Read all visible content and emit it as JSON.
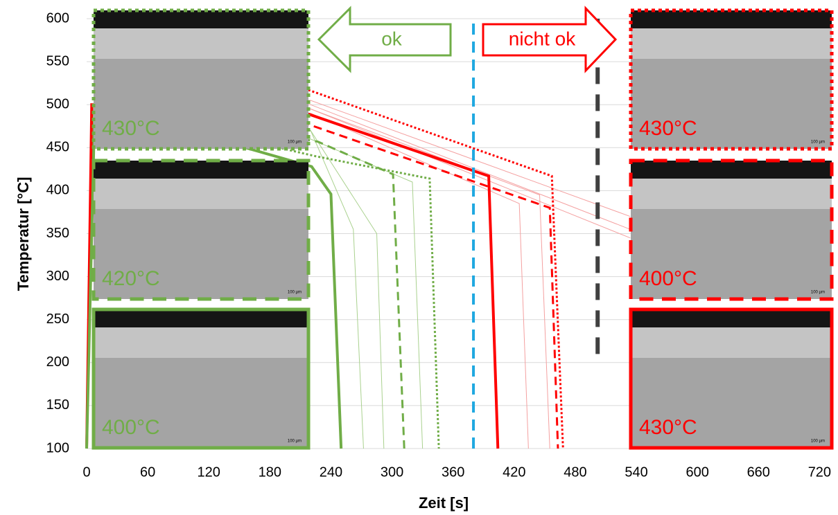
{
  "chart_data": {
    "type": "line",
    "xlabel": "Zeit [s]",
    "ylabel": "Temperatur  [°C]",
    "xlim": [
      0,
      732
    ],
    "ylim": [
      100,
      600
    ],
    "xticks": [
      0,
      60,
      120,
      180,
      240,
      300,
      360,
      420,
      480,
      540,
      600,
      660,
      720
    ],
    "yticks": [
      100,
      150,
      200,
      250,
      300,
      350,
      400,
      450,
      500,
      550,
      600
    ],
    "grid": true,
    "series": [
      {
        "color": "#a9d18e",
        "style": "solid",
        "width": 1,
        "x": [
          0,
          8,
          220,
          262,
          272
        ],
        "values": [
          100,
          500,
          470,
          355,
          100
        ]
      },
      {
        "color": "#a9d18e",
        "style": "solid",
        "width": 1,
        "x": [
          0,
          8,
          220,
          285,
          292
        ],
        "values": [
          100,
          500,
          470,
          350,
          100
        ]
      },
      {
        "color": "#a9d18e",
        "style": "solid",
        "width": 1,
        "x": [
          0,
          8,
          220,
          320,
          330
        ],
        "values": [
          100,
          500,
          460,
          410,
          100
        ]
      },
      {
        "color": "#f4a0a0",
        "style": "solid",
        "width": 1,
        "x": [
          0,
          6,
          220,
          425,
          434
        ],
        "values": [
          100,
          500,
          490,
          385,
          100
        ]
      },
      {
        "color": "#f4a0a0",
        "style": "solid",
        "width": 1,
        "x": [
          0,
          6,
          220,
          445,
          455
        ],
        "values": [
          100,
          500,
          495,
          395,
          100
        ]
      },
      {
        "color": "#f4a0a0",
        "style": "solid",
        "width": 1,
        "x": [
          0,
          6,
          220,
          534
        ],
        "values": [
          100,
          500,
          505,
          370
        ]
      },
      {
        "color": "#f4a0a0",
        "style": "solid",
        "width": 1,
        "x": [
          0,
          6,
          220,
          534
        ],
        "values": [
          100,
          500,
          500,
          355
        ]
      },
      {
        "color": "#f4a0a0",
        "style": "solid",
        "width": 1,
        "x": [
          0,
          6,
          220,
          534
        ],
        "values": [
          100,
          500,
          495,
          345
        ]
      },
      {
        "color": "#ff0000",
        "style": "dotted",
        "width": 3,
        "x": [
          0,
          5,
          218,
          457,
          468
        ],
        "values": [
          100,
          500,
          517,
          417,
          100
        ]
      },
      {
        "color": "#ff0000",
        "style": "solid",
        "width": 4,
        "x": [
          0,
          5,
          218,
          395,
          404
        ],
        "values": [
          100,
          500,
          489,
          417,
          100
        ]
      },
      {
        "color": "#ff0000",
        "style": "dashed",
        "width": 3,
        "x": [
          0,
          5,
          218,
          455,
          463
        ],
        "values": [
          100,
          500,
          477,
          380,
          100
        ]
      },
      {
        "color": "#70ad47",
        "style": "solid",
        "width": 4,
        "x": [
          0,
          8,
          221,
          240,
          250
        ],
        "values": [
          100,
          500,
          428,
          396,
          100
        ]
      },
      {
        "color": "#70ad47",
        "style": "dashed",
        "width": 3,
        "x": [
          0,
          8,
          227,
          301,
          312
        ],
        "values": [
          100,
          500,
          457,
          419,
          100
        ]
      },
      {
        "color": "#70ad47",
        "style": "dotted",
        "width": 3,
        "x": [
          0,
          8,
          225,
          337,
          346
        ],
        "values": [
          100,
          500,
          440,
          414,
          100
        ]
      }
    ],
    "vlines": [
      {
        "x": 380,
        "y": [
          100,
          600
        ],
        "color": "#1fa8e0",
        "style": "dashed",
        "width": 4
      },
      {
        "x": 502,
        "y": [
          210,
          600
        ],
        "color": "#404040",
        "style": "dashed",
        "width": 6
      }
    ],
    "arrows": [
      {
        "text": "ok",
        "color": "#70ad47",
        "direction": "left"
      },
      {
        "text": "nicht ok",
        "color": "#ff0000",
        "direction": "right"
      }
    ],
    "panels": [
      {
        "label": "430°C",
        "scale": "100 µm",
        "color": "#70ad47",
        "style": "dotted"
      },
      {
        "label": "420°C",
        "scale": "100 µm",
        "color": "#70ad47",
        "style": "dashed"
      },
      {
        "label": "400°C",
        "scale": "100 µm",
        "color": "#70ad47",
        "style": "solid"
      },
      {
        "label": "430°C",
        "scale": "100 µm",
        "color": "#ff0000",
        "style": "dotted"
      },
      {
        "label": "400°C",
        "scale": "100 µm",
        "color": "#ff0000",
        "style": "dashed"
      },
      {
        "label": "430°C",
        "scale": "100 µm",
        "color": "#ff0000",
        "style": "solid"
      }
    ]
  }
}
